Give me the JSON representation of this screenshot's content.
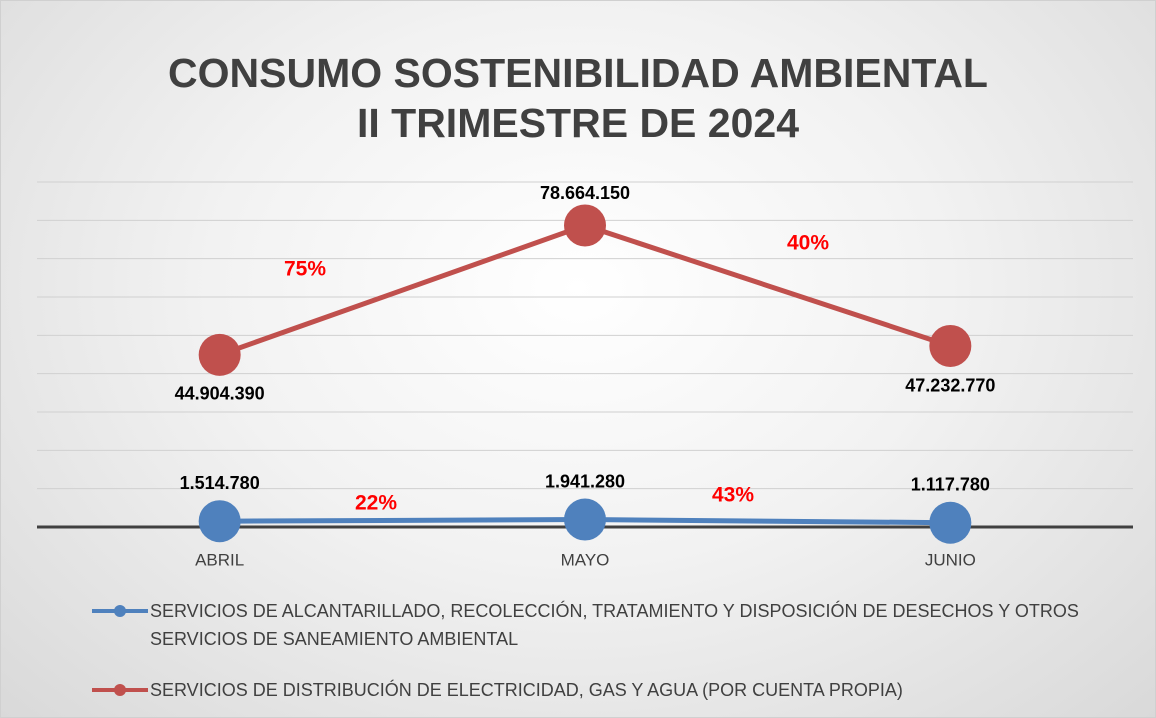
{
  "chart_data": {
    "type": "line",
    "title": [
      "CONSUMO SOSTENIBILIDAD AMBIENTAL",
      "II TRIMESTRE DE 2024"
    ],
    "categories": [
      "ABRIL",
      "MAYO",
      "JUNIO"
    ],
    "series": [
      {
        "name": "SERVICIOS DE ALCANTARILLADO, RECOLECCIÓN, TRATAMIENTO Y DISPOSICIÓN DE DESECHOS Y OTROS SERVICIOS DE SANEAMIENTO AMBIENTAL",
        "color": "#4f81bd",
        "values": [
          1514780,
          1941280,
          1117780
        ],
        "value_labels": [
          "1.514.780",
          "1.941.280",
          "1.117.780"
        ]
      },
      {
        "name": "SERVICIOS DE DISTRIBUCIÓN DE ELECTRICIDAD, GAS Y AGUA (POR CUENTA PROPIA)",
        "color": "#c0504d",
        "values": [
          44904390,
          78664150,
          47232770
        ],
        "value_labels": [
          "44.904.390",
          "78.664.150",
          "47.232.770"
        ]
      }
    ],
    "annotations": [
      "75%",
      "40%",
      "22%",
      "43%"
    ],
    "ylim": [
      0,
      90000000
    ],
    "yticks": [
      0,
      10000000,
      20000000,
      30000000,
      40000000,
      50000000,
      60000000,
      70000000,
      80000000,
      90000000
    ],
    "grid": true,
    "legend": "bottom"
  }
}
